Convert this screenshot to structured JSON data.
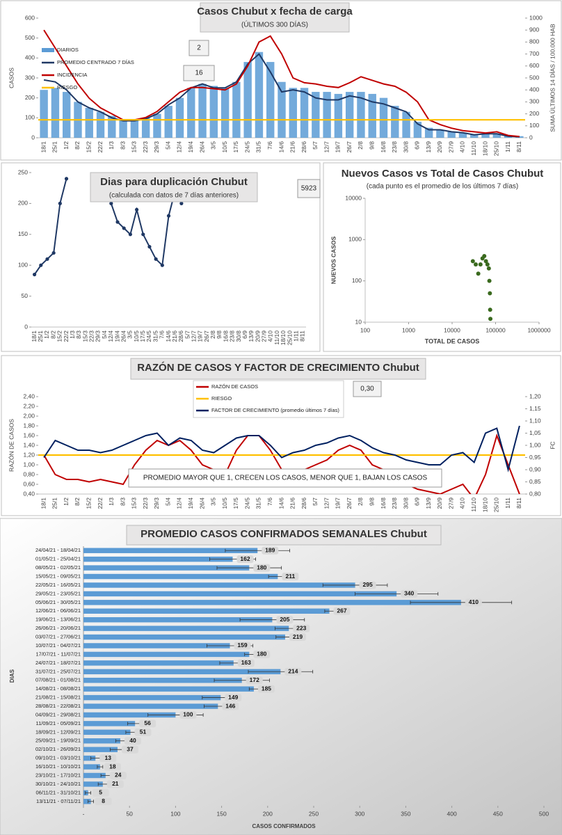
{
  "chart_data": [
    {
      "type": "combo",
      "title": "Casos Chubut x fecha de carga",
      "subtitle": "(ÚLTIMOS 300 DÍAS)",
      "ylabel": "CASOS",
      "y2label": "SUMA ÚLTIMOS 14 DÍAS / 100.000 HAB",
      "legend": "top-left",
      "annotations": [
        "2",
        "16"
      ],
      "categories": [
        "18/1",
        "25/1",
        "1/2",
        "8/2",
        "15/2",
        "22/2",
        "1/3",
        "8/3",
        "15/3",
        "22/3",
        "29/3",
        "5/4",
        "12/4",
        "19/4",
        "26/4",
        "3/5",
        "10/5",
        "17/5",
        "24/5",
        "31/5",
        "7/6",
        "14/6",
        "21/6",
        "28/6",
        "5/7",
        "12/7",
        "19/7",
        "26/7",
        "2/8",
        "9/8",
        "16/8",
        "23/8",
        "30/8",
        "6/9",
        "13/9",
        "20/9",
        "27/9",
        "4/10",
        "11/10",
        "18/10",
        "25/10",
        "1/11",
        "8/11"
      ],
      "ylim": [
        0,
        600
      ],
      "yticks": [
        0,
        100,
        200,
        300,
        400,
        500,
        600
      ],
      "y2lim": [
        0,
        1000
      ],
      "y2ticks": [
        0,
        100,
        200,
        300,
        400,
        500,
        600,
        700,
        800,
        900,
        1000
      ],
      "series": [
        {
          "name": "DIARIOS",
          "kind": "bar",
          "color": "#5b9bd5",
          "values": [
            240,
            250,
            230,
            180,
            150,
            130,
            110,
            90,
            90,
            100,
            120,
            160,
            200,
            250,
            270,
            260,
            250,
            280,
            380,
            430,
            380,
            280,
            250,
            250,
            230,
            230,
            220,
            230,
            230,
            220,
            200,
            160,
            130,
            80,
            50,
            40,
            30,
            25,
            18,
            20,
            20,
            10,
            8
          ]
        },
        {
          "name": "PROMEDIO CENTRADO 7 DÍAS",
          "kind": "line",
          "color": "#1f3864",
          "values": [
            290,
            280,
            240,
            180,
            150,
            130,
            100,
            85,
            85,
            95,
            120,
            165,
            200,
            250,
            270,
            250,
            250,
            280,
            370,
            420,
            330,
            230,
            240,
            230,
            200,
            190,
            190,
            210,
            200,
            180,
            170,
            150,
            130,
            70,
            40,
            40,
            30,
            25,
            15,
            20,
            20,
            8,
            5
          ]
        },
        {
          "name": "INCIDENCIA",
          "kind": "line",
          "axis": "y2",
          "color": "#c00000",
          "values": [
            900,
            750,
            600,
            450,
            330,
            250,
            200,
            150,
            150,
            170,
            220,
            300,
            380,
            420,
            420,
            410,
            400,
            450,
            600,
            800,
            850,
            700,
            500,
            460,
            450,
            430,
            420,
            460,
            510,
            480,
            450,
            430,
            380,
            300,
            150,
            110,
            80,
            60,
            50,
            40,
            50,
            20,
            10
          ]
        },
        {
          "name": "RIESGO",
          "kind": "hline",
          "color": "#ffc000",
          "value": 90
        }
      ]
    },
    {
      "type": "line",
      "title": "Dias para duplicación Chubut",
      "subtitle": "(calculada con datos de 7 días anteriores)",
      "annotations": [
        "5923"
      ],
      "markers": true,
      "categories": [
        "18/1",
        "25/1",
        "1/2",
        "8/2",
        "15/2",
        "22/2",
        "1/3",
        "8/3",
        "15/3",
        "22/3",
        "29/3",
        "5/4",
        "12/4",
        "19/4",
        "26/4",
        "3/5",
        "10/5",
        "17/5",
        "24/5",
        "31/5",
        "7/6",
        "14/6",
        "21/6",
        "28/6",
        "5/7",
        "12/7",
        "19/7",
        "26/7",
        "2/8",
        "9/8",
        "16/8",
        "23/8",
        "30/8",
        "6/9",
        "13/9",
        "20/9",
        "27/9",
        "4/10",
        "11/10",
        "18/10",
        "25/10",
        "1/11",
        "8/11"
      ],
      "ylim": [
        0,
        250
      ],
      "yticks": [
        0,
        50,
        100,
        150,
        200,
        250
      ],
      "series": [
        {
          "kind": "line",
          "color": "#1f3864",
          "values": [
            85,
            100,
            110,
            120,
            200,
            240,
            null,
            null,
            null,
            null,
            null,
            null,
            200,
            170,
            160,
            150,
            190,
            150,
            130,
            110,
            100,
            180,
            220,
            200,
            null,
            null,
            null,
            null,
            null,
            null,
            null,
            null,
            null,
            null,
            null,
            null,
            null,
            null,
            null,
            null,
            null,
            null,
            null
          ]
        }
      ]
    },
    {
      "type": "scatter",
      "title": "Nuevos Casos vs Total de Casos Chubut",
      "subtitle": "(cada punto es el promedio de los últimos 7 días)",
      "xlabel": "TOTAL DE CASOS",
      "ylabel": "NUEVOS CASOS",
      "xscale": "log",
      "yscale": "log",
      "color": "#3a6a1e",
      "xlim": [
        100,
        1000000
      ],
      "xticks": [
        100,
        1000,
        10000,
        100000,
        1000000
      ],
      "ylim": [
        10,
        10000
      ],
      "yticks": [
        10,
        100,
        1000,
        10000
      ],
      "x": [
        30000,
        35000,
        40000,
        45000,
        50000,
        55000,
        60000,
        65000,
        70000,
        72000,
        74000,
        75000,
        76000
      ],
      "y": [
        300,
        250,
        150,
        250,
        350,
        400,
        300,
        250,
        200,
        100,
        50,
        20,
        12
      ]
    },
    {
      "type": "line",
      "title": "RAZÓN DE CASOS Y FACTOR DE CRECIMIENTO Chubut",
      "ylabel": "RAZÓN DE CASOS",
      "y2label": "FC",
      "legend": "top-center",
      "annotations": [
        "0,30",
        "PROMEDIO MAYOR QUE 1, CRECEN LOS CASOS, MENOR QUE 1, BAJAN LOS CASOS"
      ],
      "categories": [
        "18/1",
        "25/1",
        "1/2",
        "8/2",
        "15/2",
        "22/2",
        "1/3",
        "8/3",
        "15/3",
        "22/3",
        "29/3",
        "5/4",
        "12/4",
        "19/4",
        "26/4",
        "3/5",
        "10/5",
        "17/5",
        "24/5",
        "31/5",
        "7/6",
        "14/6",
        "21/6",
        "28/6",
        "5/7",
        "12/7",
        "19/7",
        "26/7",
        "2/8",
        "9/8",
        "16/8",
        "23/8",
        "30/8",
        "6/9",
        "13/9",
        "20/9",
        "27/9",
        "4/10",
        "11/10",
        "18/10",
        "25/10",
        "1/11",
        "8/11"
      ],
      "ylim": [
        0.4,
        2.4
      ],
      "yticks": [
        {
          "value": 0.4,
          "label": "0,40"
        },
        {
          "value": 0.6,
          "label": "0,60"
        },
        {
          "value": 0.8,
          "label": "0,80"
        },
        {
          "value": 1.0,
          "label": "1,00"
        },
        {
          "value": 1.2,
          "label": "1,20"
        },
        {
          "value": 1.4,
          "label": "1,40"
        },
        {
          "value": 1.6,
          "label": "1,60"
        },
        {
          "value": 1.8,
          "label": "1,80"
        },
        {
          "value": 2.0,
          "label": "2,00"
        },
        {
          "value": 2.2,
          "label": "2,20"
        },
        {
          "value": 2.4,
          "label": "2,40"
        }
      ],
      "y2lim": [
        0.8,
        1.2
      ],
      "y2ticks": [
        {
          "value": 0.8,
          "label": "0,80"
        },
        {
          "value": 0.85,
          "label": "0,85"
        },
        {
          "value": 0.9,
          "label": "0,90"
        },
        {
          "value": 0.95,
          "label": "0,95"
        },
        {
          "value": 1.0,
          "label": "1,00"
        },
        {
          "value": 1.05,
          "label": "1,05"
        },
        {
          "value": 1.1,
          "label": "1,10"
        },
        {
          "value": 1.15,
          "label": "1,15"
        },
        {
          "value": 1.2,
          "label": "1,20"
        }
      ],
      "series": [
        {
          "name": "RAZÓN DE CASOS",
          "kind": "line",
          "color": "#c00000",
          "values": [
            1.2,
            0.8,
            0.7,
            0.7,
            0.65,
            0.7,
            0.65,
            0.6,
            1.0,
            1.3,
            1.5,
            1.4,
            1.5,
            1.3,
            1.0,
            0.9,
            0.8,
            1.3,
            1.6,
            1.6,
            1.3,
            0.9,
            0.8,
            0.9,
            1.0,
            1.1,
            1.3,
            1.4,
            1.3,
            1.0,
            0.9,
            0.8,
            0.6,
            0.5,
            0.45,
            0.4,
            0.5,
            0.6,
            0.3,
            0.8,
            1.6,
            1.0,
            0.4
          ]
        },
        {
          "name": "RIESGO",
          "kind": "hline",
          "color": "#ffc000",
          "value": 1.2
        },
        {
          "name": "FACTOR DE CRECIMIENTO (promedio últimos 7 días)",
          "kind": "line",
          "axis": "y2",
          "color": "#002060",
          "values": [
            0.95,
            1.02,
            1.0,
            0.98,
            0.98,
            0.97,
            0.98,
            1.0,
            1.02,
            1.04,
            1.05,
            1.0,
            1.03,
            1.02,
            0.98,
            0.97,
            1.0,
            1.03,
            1.04,
            1.04,
            1.0,
            0.95,
            0.97,
            0.98,
            1.0,
            1.01,
            1.03,
            1.04,
            1.02,
            0.99,
            0.97,
            0.96,
            0.94,
            0.93,
            0.92,
            0.92,
            0.96,
            0.97,
            0.93,
            1.05,
            1.07,
            0.9,
            1.08
          ]
        }
      ]
    },
    {
      "type": "barh",
      "title": "PROMEDIO CASOS CONFIRMADOS SEMANALES Chubut",
      "ylabel": "DIAS",
      "xlabel": "CASOS CONFIRMADOS",
      "color": "#5b9bd5",
      "categories": [
        "24/04/21 - 18/04/21",
        "01/05/21 - 25/04/21",
        "08/05/21 - 02/05/21",
        "15/05/21 - 09/05/21",
        "22/05/21 - 16/05/21",
        "29/05/21 - 23/05/21",
        "05/06/21 - 30/05/21",
        "12/06/21 - 06/06/21",
        "19/06/21 - 13/06/21",
        "26/06/21 - 20/06/21",
        "03/07/21 - 27/06/21",
        "10/07/21 - 04/07/21",
        "17/07/21 - 11/07/21",
        "24/07/21 - 18/07/21",
        "31/07/21 - 25/07/21",
        "07/08/21 - 01/08/21",
        "14/08/21 - 08/08/21",
        "21/08/21 - 15/08/21",
        "28/08/21 - 22/08/21",
        "04/09/21 - 29/08/21",
        "11/09/21 - 05/09/21",
        "18/09/21 - 12/09/21",
        "25/09/21 - 19/09/21",
        "02/10/21 - 26/09/21",
        "09/10/21 - 03/10/21",
        "16/10/21 - 10/10/21",
        "23/10/21 - 17/10/21",
        "30/10/21 - 24/10/21",
        "06/11/21 - 31/10/21",
        "13/11/21 - 07/11/21"
      ],
      "values": [
        189,
        162,
        180,
        211,
        295,
        340,
        410,
        267,
        205,
        223,
        219,
        159,
        180,
        163,
        214,
        172,
        185,
        149,
        146,
        100,
        56,
        51,
        40,
        37,
        13,
        18,
        24,
        21,
        5,
        8
      ],
      "errors": [
        35,
        25,
        35,
        10,
        35,
        45,
        55,
        5,
        35,
        15,
        10,
        25,
        5,
        15,
        35,
        30,
        5,
        20,
        15,
        30,
        8,
        5,
        5,
        8,
        5,
        3,
        5,
        5,
        3,
        3
      ],
      "xlim": [
        0,
        500
      ],
      "xticks": [
        {
          "value": 0,
          "label": "-"
        },
        50,
        100,
        150,
        200,
        250,
        300,
        350,
        400,
        450,
        500
      ]
    }
  ]
}
